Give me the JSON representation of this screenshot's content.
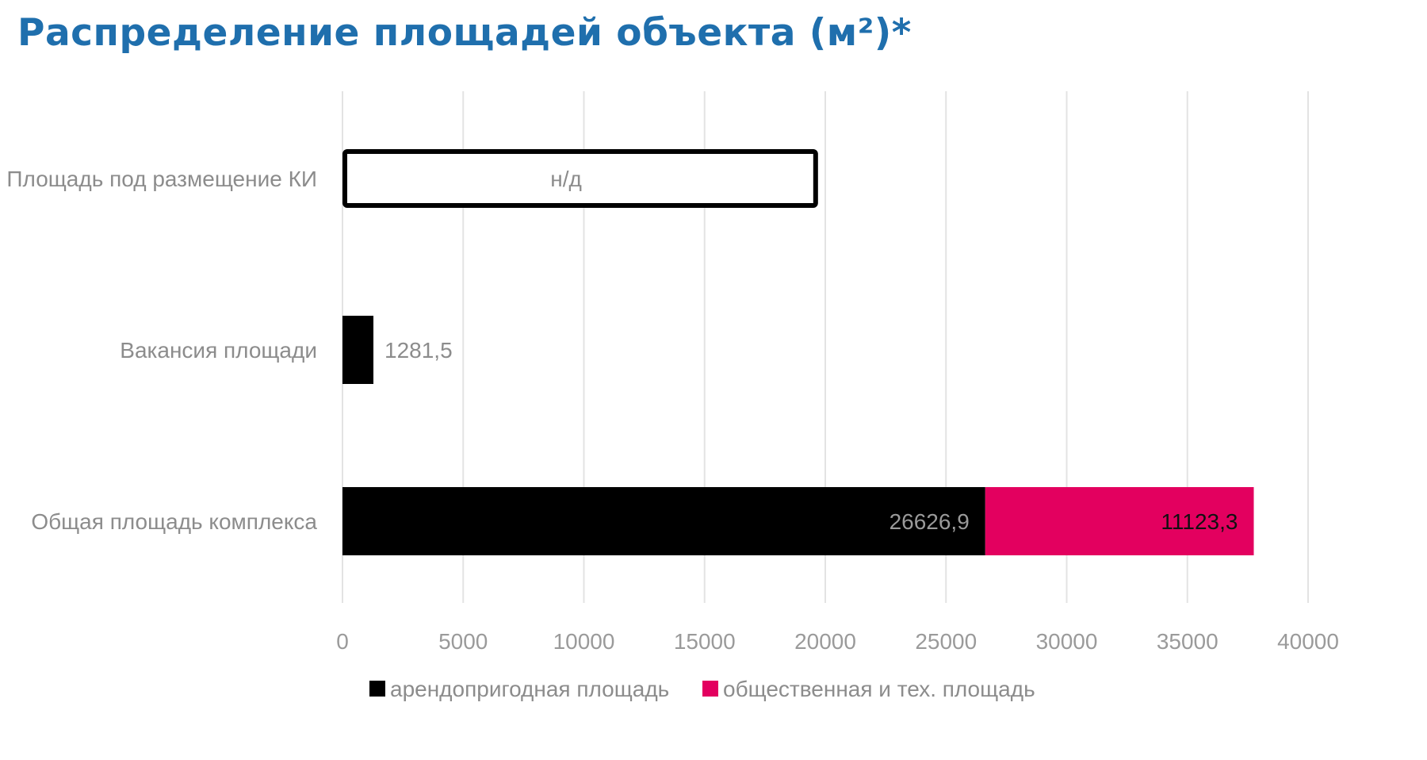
{
  "title": "Распределение площадей объекта (м²)*",
  "chart_data": {
    "type": "bar",
    "orientation": "horizontal",
    "stacked": true,
    "title": "Распределение площадей объекта (м²)*",
    "categories": [
      "Площадь под размещение КИ",
      "Вакансия площади",
      "Общая площадь комплекса"
    ],
    "series": [
      {
        "name": "арендопригодная площадь",
        "color": "#000000",
        "values": [
          null,
          1281.5,
          26626.9
        ],
        "labels": [
          "",
          "1281,5",
          "26626,9"
        ],
        "label_colors": [
          "",
          "#8c8c8c",
          "#9a9a9a"
        ]
      },
      {
        "name": "общественная и тех. площадь",
        "color": "#e3005f",
        "values": [
          null,
          null,
          11123.3
        ],
        "labels": [
          "",
          "",
          "11123,3"
        ],
        "label_colors": [
          "",
          "",
          "#111111"
        ]
      }
    ],
    "placeholder": {
      "category": "Площадь под размещение КИ",
      "label": "н/д",
      "approx_value": 19600,
      "style": "outlined-white"
    },
    "xlim": [
      0,
      40000
    ],
    "xticks": [
      0,
      5000,
      10000,
      15000,
      20000,
      25000,
      30000,
      35000,
      40000
    ],
    "grid": true,
    "gridline_color": "#e3e3e3",
    "legend_position": "bottom"
  }
}
